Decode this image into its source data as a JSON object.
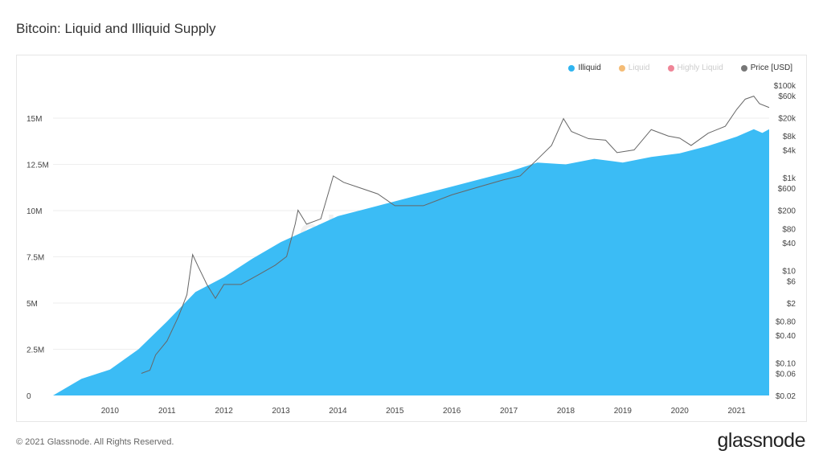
{
  "title": "Bitcoin: Liquid and Illiquid Supply",
  "footer": {
    "copyright": "© 2021 Glassnode. All Rights Reserved.",
    "brand": "glassnode",
    "watermark": "glassnode"
  },
  "chart_data": {
    "type": "area",
    "title": "Bitcoin: Liquid and Illiquid Supply",
    "legend_position": "top-right",
    "legend": [
      {
        "name": "Illiquid",
        "color": "#2fb4f0",
        "active": true
      },
      {
        "name": "Liquid",
        "color": "#f0a03c",
        "active": false
      },
      {
        "name": "Highly Liquid",
        "color": "#e8516b",
        "active": false
      },
      {
        "name": "Price [USD]",
        "color": "#777777",
        "active": true
      }
    ],
    "x_ticks": [
      "2010",
      "2011",
      "2012",
      "2013",
      "2014",
      "2015",
      "2016",
      "2017",
      "2018",
      "2019",
      "2020",
      "2021"
    ],
    "xlim": [
      2009.0,
      2021.57
    ],
    "y_left": {
      "ticks": [
        "0",
        "2.5M",
        "5M",
        "7.5M",
        "10M",
        "12.5M",
        "15M"
      ],
      "ylim": [
        0,
        15000000
      ],
      "grid": true
    },
    "y_right": {
      "scale": "log",
      "ticks": [
        "$0.02",
        "$0.06",
        "$0.10",
        "$0.40",
        "$0.80",
        "$2",
        "$6",
        "$10",
        "$40",
        "$80",
        "$200",
        "$600",
        "$1k",
        "$4k",
        "$8k",
        "$20k",
        "$60k",
        "$100k"
      ],
      "tick_values": [
        0.02,
        0.06,
        0.1,
        0.4,
        0.8,
        2,
        6,
        10,
        40,
        80,
        200,
        600,
        1000,
        4000,
        8000,
        20000,
        60000,
        100000
      ],
      "ylim": [
        0.02,
        100000
      ]
    },
    "series": [
      {
        "name": "Illiquid",
        "type": "area",
        "color": "#3bbcf5",
        "x": [
          2009.0,
          2009.5,
          2010.0,
          2010.5,
          2011.0,
          2011.5,
          2012.0,
          2012.5,
          2013.0,
          2013.5,
          2014.0,
          2014.5,
          2015.0,
          2015.5,
          2016.0,
          2016.5,
          2017.0,
          2017.5,
          2018.0,
          2018.5,
          2019.0,
          2019.5,
          2020.0,
          2020.5,
          2021.0,
          2021.3,
          2021.45,
          2021.57
        ],
        "y": [
          0,
          0.9,
          1.4,
          2.5,
          4.0,
          5.6,
          6.4,
          7.4,
          8.3,
          9.0,
          9.7,
          10.1,
          10.5,
          10.9,
          11.3,
          11.7,
          12.1,
          12.6,
          12.5,
          12.8,
          12.6,
          12.9,
          13.1,
          13.5,
          14.0,
          14.4,
          14.2,
          14.4
        ]
      },
      {
        "name": "Price [USD]",
        "type": "line",
        "color": "#666666",
        "x": [
          2010.55,
          2010.7,
          2010.8,
          2011.0,
          2011.2,
          2011.35,
          2011.45,
          2011.55,
          2011.7,
          2011.85,
          2012.0,
          2012.3,
          2012.6,
          2012.9,
          2013.1,
          2013.25,
          2013.3,
          2013.45,
          2013.7,
          2013.92,
          2014.1,
          2014.4,
          2014.7,
          2015.0,
          2015.5,
          2016.0,
          2016.5,
          2016.9,
          2017.2,
          2017.5,
          2017.75,
          2017.96,
          2018.1,
          2018.4,
          2018.7,
          2018.9,
          2019.2,
          2019.5,
          2019.8,
          2020.0,
          2020.2,
          2020.5,
          2020.8,
          2021.0,
          2021.15,
          2021.3,
          2021.4,
          2021.57
        ],
        "y": [
          0.06,
          0.07,
          0.15,
          0.3,
          1,
          3,
          22,
          12,
          5,
          2.5,
          5,
          5,
          8,
          13,
          20,
          100,
          200,
          100,
          130,
          1100,
          800,
          600,
          450,
          250,
          250,
          430,
          650,
          900,
          1100,
          2500,
          5000,
          19000,
          10000,
          7000,
          6500,
          3500,
          4000,
          11000,
          8000,
          7200,
          5000,
          9200,
          13000,
          30000,
          50000,
          58000,
          40000,
          33000
        ]
      }
    ]
  }
}
